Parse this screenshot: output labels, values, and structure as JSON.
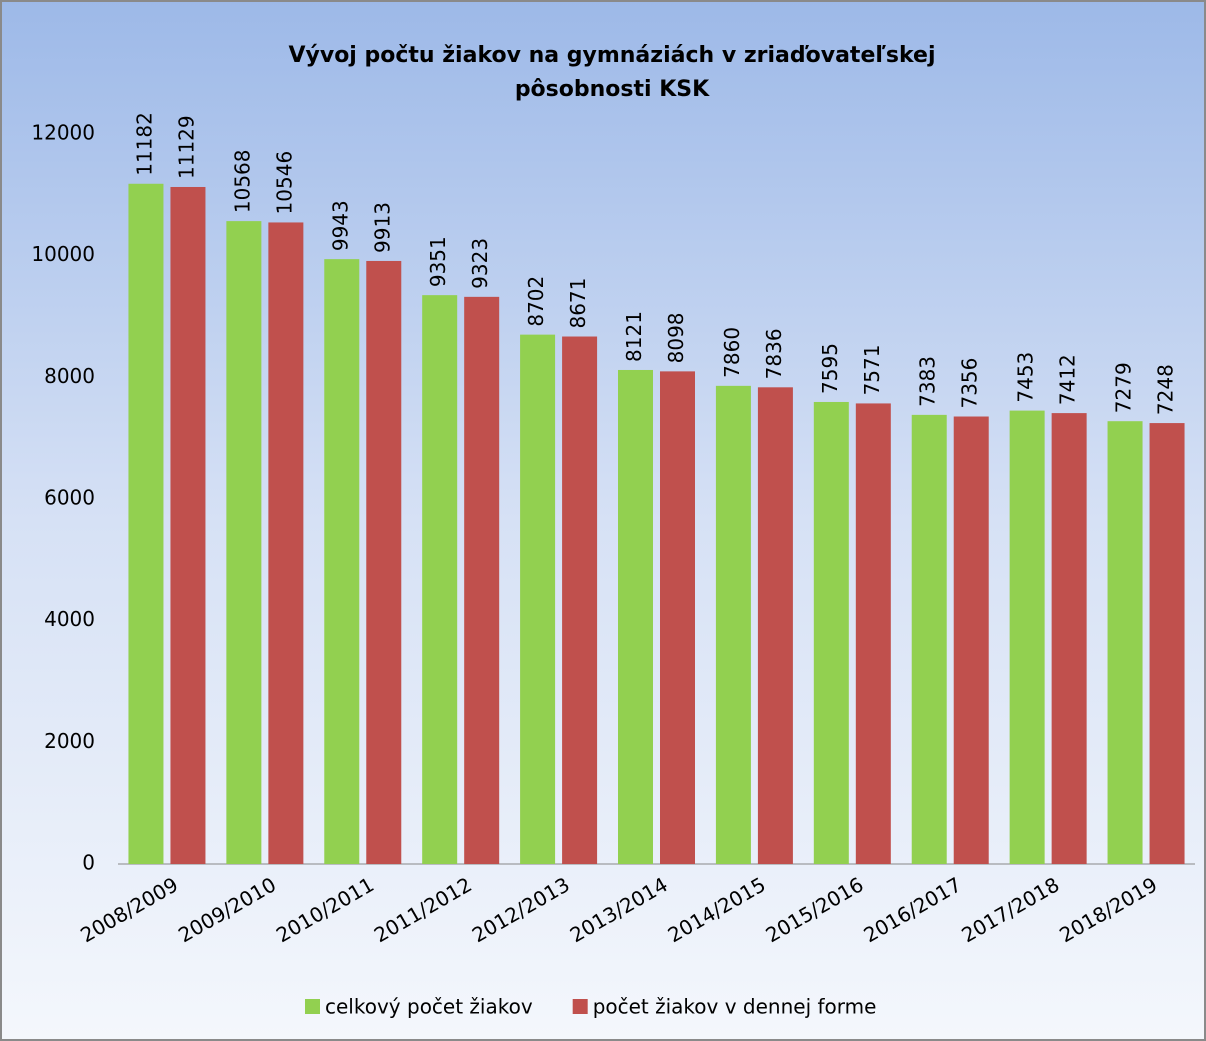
{
  "chart_data": {
    "type": "bar",
    "title": [
      "Vývoj počtu žiakov na gymnáziách v zriaďovateľskej",
      "pôsobnosti  KSK"
    ],
    "categories": [
      "2008/2009",
      "2009/2010",
      "2010/2011",
      "2011/2012",
      "2012/2013",
      "2013/2014",
      "2014/2015",
      "2015/2016",
      "2016/2017",
      "2017/2018",
      "2018/2019"
    ],
    "series": [
      {
        "name": "celkový počet žiakov",
        "color": "#92d050",
        "values": [
          11182,
          10568,
          9943,
          9351,
          8702,
          8121,
          7860,
          7595,
          7383,
          7453,
          7279
        ]
      },
      {
        "name": "počet žiakov v dennej forme",
        "color": "#c0504d",
        "values": [
          11129,
          10546,
          9913,
          9323,
          8671,
          8098,
          7836,
          7571,
          7356,
          7412,
          7248
        ]
      }
    ],
    "ylim": [
      0,
      12000
    ],
    "yticks": [
      0,
      2000,
      4000,
      6000,
      8000,
      10000,
      12000
    ],
    "grid": false,
    "legend": "bottom"
  }
}
